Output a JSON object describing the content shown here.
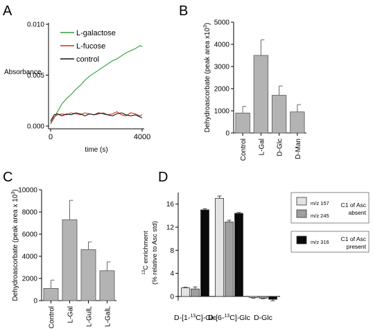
{
  "chart_data": [
    {
      "panel": "A",
      "type": "line",
      "xlabel": "time (s)",
      "ylabel": "Absorbance",
      "xlim": [
        0,
        4000
      ],
      "ylim": [
        0,
        0.01
      ],
      "xticks": [
        "0",
        "4000"
      ],
      "yticks": [
        "0.000",
        "0.005",
        "0.010"
      ],
      "legend_position": "top-left",
      "series": [
        {
          "name": "L-galactose",
          "color": "#2e9b3a",
          "x": [
            0,
            150,
            300,
            500,
            700,
            900,
            1100,
            1300,
            1500,
            1700,
            1900,
            2100,
            2300,
            2500,
            2700,
            2900,
            3100,
            3300,
            3500,
            3700,
            3900,
            4000
          ],
          "y": [
            0.0002,
            0.0008,
            0.0014,
            0.0022,
            0.0027,
            0.0031,
            0.0036,
            0.004,
            0.0045,
            0.0049,
            0.0052,
            0.0055,
            0.0058,
            0.0061,
            0.0064,
            0.0066,
            0.0069,
            0.0072,
            0.0074,
            0.0076,
            0.0079,
            0.0078
          ]
        },
        {
          "name": "L-fucose",
          "color": "#cc2b1d",
          "x": [
            0,
            150,
            300,
            500,
            700,
            900,
            1100,
            1300,
            1500,
            1700,
            1900,
            2100,
            2300,
            2500,
            2700,
            2900,
            3100,
            3300,
            3500,
            3700,
            3900,
            4000
          ],
          "y": [
            0.0003,
            0.0009,
            0.0011,
            0.0012,
            0.0011,
            0.0013,
            0.0012,
            0.0011,
            0.0013,
            0.0012,
            0.0011,
            0.0012,
            0.0013,
            0.0011,
            0.0012,
            0.0014,
            0.0011,
            0.001,
            0.0013,
            0.0012,
            0.001,
            0.0011
          ]
        },
        {
          "name": "control",
          "color": "#111111",
          "x": [
            0,
            150,
            300,
            500,
            700,
            900,
            1100,
            1300,
            1500,
            1700,
            1900,
            2100,
            2300,
            2500,
            2700,
            2900,
            3100,
            3300,
            3500,
            3700,
            3900,
            4000
          ],
          "y": [
            0.0005,
            0.0011,
            0.0012,
            0.001,
            0.0012,
            0.0011,
            0.0013,
            0.0012,
            0.001,
            0.0012,
            0.0011,
            0.0013,
            0.0012,
            0.0011,
            0.001,
            0.0012,
            0.0013,
            0.0011,
            0.001,
            0.0011,
            0.0009,
            0.0008
          ]
        }
      ]
    },
    {
      "panel": "B",
      "type": "bar",
      "ylabel": "Dehydroascorbate (peak area x10",
      "ylabel_sup": "3",
      "ylabel_end": ")",
      "ylim": [
        0,
        5000
      ],
      "yticks": [
        "0",
        "1000",
        "2000",
        "3000",
        "4000",
        "5000"
      ],
      "categories": [
        "Control",
        "L-Gal",
        "D-Glc",
        "D-Man"
      ],
      "values": [
        900,
        3500,
        1700,
        950
      ],
      "errors": [
        300,
        700,
        420,
        330
      ],
      "color": "#b3b3b3"
    },
    {
      "panel": "C",
      "type": "bar",
      "ylabel": "Dehydroascorbate (peak area x 10",
      "ylabel_sup": "3",
      "ylabel_end": ")",
      "ylim": [
        0,
        10000
      ],
      "yticks": [
        "0",
        "2000",
        "4000",
        "6000",
        "8000",
        "10000"
      ],
      "categories": [
        "Control",
        "L-Gal",
        "L-GulL",
        "L-GalL"
      ],
      "values": [
        1100,
        7300,
        4600,
        2700
      ],
      "errors": [
        750,
        1750,
        700,
        800
      ],
      "color": "#b3b3b3"
    },
    {
      "panel": "D",
      "type": "bar",
      "ylabel_line1_sup": "13",
      "ylabel_line1": "C enrichment",
      "ylabel_line2": "(% relative to Asc std)",
      "ylim": [
        -1,
        18
      ],
      "yticks": [
        "0",
        "4",
        "8",
        "12",
        "16"
      ],
      "categories": [
        "D-[1-13C]-Glc",
        "D-[6-13C]-Glc",
        "D-Glc"
      ],
      "category_parts": [
        {
          "pre": "D-[1-",
          "sup": "13",
          "post": "C]-Glc"
        },
        {
          "pre": "D-[6-",
          "sup": "13",
          "post": "C]-Glc"
        },
        {
          "pre": "D-Glc",
          "sup": "",
          "post": ""
        }
      ],
      "series": [
        {
          "name": "m/z 157",
          "color": "#e3e3e3",
          "values": [
            1.5,
            17.0,
            -0.2
          ],
          "errors": [
            0.1,
            0.4,
            0.1
          ]
        },
        {
          "name": "m/z 245",
          "color": "#9e9e9e",
          "values": [
            1.3,
            12.9,
            -0.3
          ],
          "errors": [
            0.35,
            0.3,
            0.1
          ]
        },
        {
          "name": "m/z 316",
          "color": "#0a0a0a",
          "values": [
            15.0,
            14.4,
            -0.5
          ],
          "errors": [
            0.2,
            0.15,
            0.25
          ]
        }
      ],
      "legend_groups": [
        {
          "note": "C1 of Asc absent",
          "note_line1": "C1 of Asc",
          "note_line2": "absent",
          "entries": [
            "m/z 157",
            "m/z 245"
          ]
        },
        {
          "note": "C1 of Asc present",
          "note_line1": "C1 of Asc",
          "note_line2": "present",
          "entries": [
            "m/z 316"
          ]
        }
      ]
    }
  ],
  "panel_letters": {
    "a": "A",
    "b": "B",
    "c": "C",
    "d": "D"
  }
}
